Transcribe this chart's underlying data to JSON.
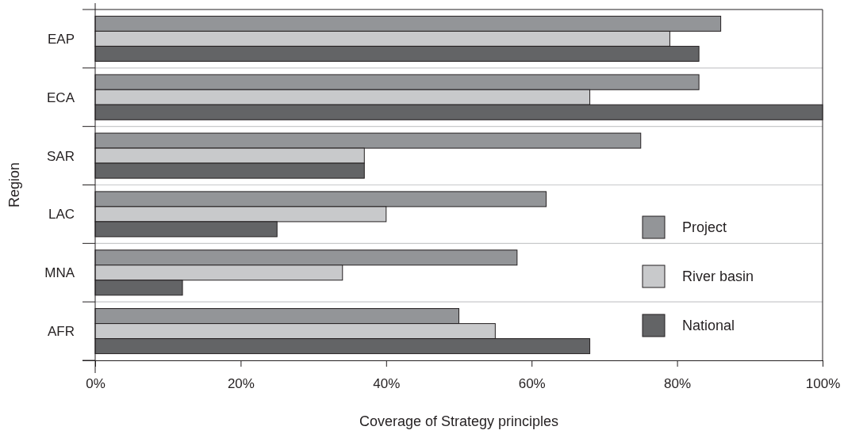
{
  "chart_data": {
    "type": "bar",
    "orientation": "horizontal",
    "xlabel": "Coverage of Strategy principles",
    "ylabel": "Region",
    "categories": [
      "EAP",
      "ECA",
      "SAR",
      "LAC",
      "MNA",
      "AFR"
    ],
    "series": [
      {
        "name": "Project",
        "color": "#939598",
        "values": [
          86,
          83,
          75,
          62,
          58,
          50
        ]
      },
      {
        "name": "River basin",
        "color": "#c8c9cb",
        "values": [
          79,
          68,
          37,
          40,
          34,
          55
        ]
      },
      {
        "name": "National",
        "color": "#636466",
        "values": [
          83,
          100,
          37,
          25,
          12,
          68
        ]
      }
    ],
    "xlim": [
      0,
      100
    ],
    "xticks": [
      {
        "value": 0,
        "label": "0%"
      },
      {
        "value": 20,
        "label": "20%"
      },
      {
        "value": 40,
        "label": "40%"
      },
      {
        "value": 60,
        "label": "60%"
      },
      {
        "value": 80,
        "label": "80%"
      },
      {
        "value": 100,
        "label": "100%"
      }
    ],
    "grid": "y",
    "legend": "bottom right"
  }
}
